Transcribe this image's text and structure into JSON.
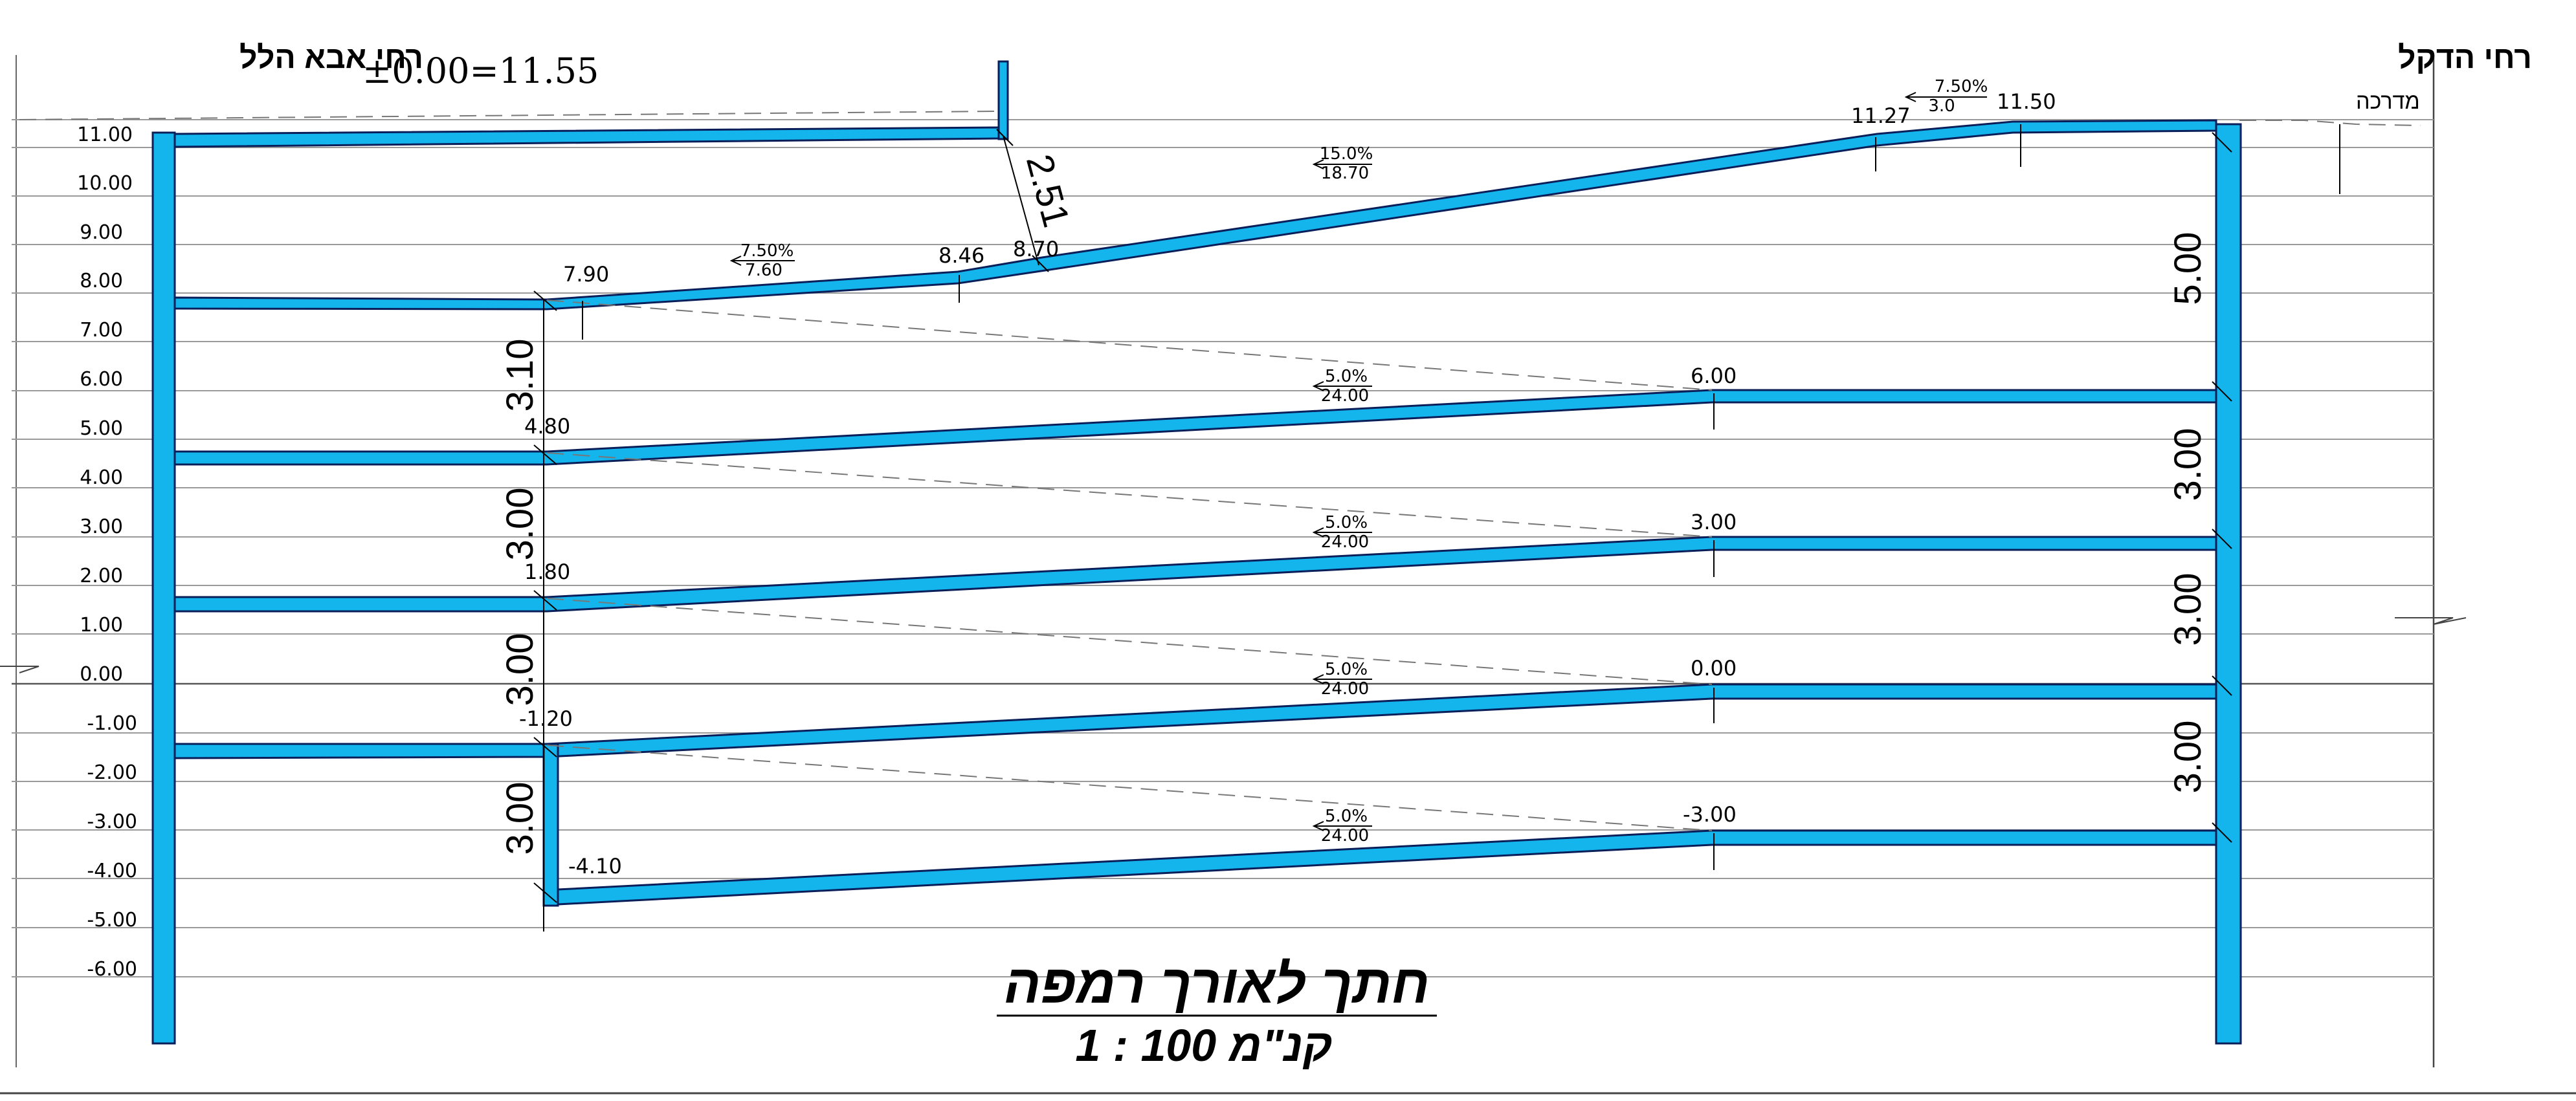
{
  "header": {
    "left_street": "רחי אבא הלל",
    "right_street": "רחי הדקל",
    "datum": "±0.00=11.55",
    "sidewalk": "מדרכה"
  },
  "title": {
    "main": "חתך לאורך רמפה",
    "scale": "1 : 100  קנ\"מ"
  },
  "colors": {
    "structure": "#13b5ec",
    "outline": "#0a1e5a"
  },
  "elevation_scale": [
    "11.00",
    "10.00",
    "9.00",
    "8.00",
    "7.00",
    "6.00",
    "5.00",
    "4.00",
    "3.00",
    "2.00",
    "1.00",
    "0.00",
    "-1.00",
    "-2.00",
    "-3.00",
    "-4.00",
    "-5.00",
    "-6.00"
  ],
  "levels": {
    "top_right_1": "11.27",
    "top_right_2": "11.50",
    "ramp_top_low": "8.70",
    "ramp_mid": "8.46",
    "floor1_left": "7.90",
    "floor1_right": "6.00",
    "floor2_left": "4.80",
    "floor2_right": "3.00",
    "floor3_left": "1.80",
    "floor3_right": "0.00",
    "floor4_left": "-1.20",
    "floor4_right": "-3.00",
    "floor5_left": "-4.10"
  },
  "slopes": [
    {
      "pct": "7.50%",
      "len": "3.0"
    },
    {
      "pct": "15.0%",
      "len": "18.70"
    },
    {
      "pct": "7.50%",
      "len": "7.60"
    },
    {
      "pct": "5.0%",
      "len": "24.00"
    },
    {
      "pct": "5.0%",
      "len": "24.00"
    },
    {
      "pct": "5.0%",
      "len": "24.00"
    },
    {
      "pct": "5.0%",
      "len": "24.00"
    }
  ],
  "heights": {
    "top_height": "2.51",
    "left_1": "3.10",
    "left_2": "3.00",
    "left_3": "3.00",
    "left_4": "3.00",
    "right_1": "5.00",
    "right_2": "3.00",
    "right_3": "3.00",
    "right_4": "3.00"
  }
}
